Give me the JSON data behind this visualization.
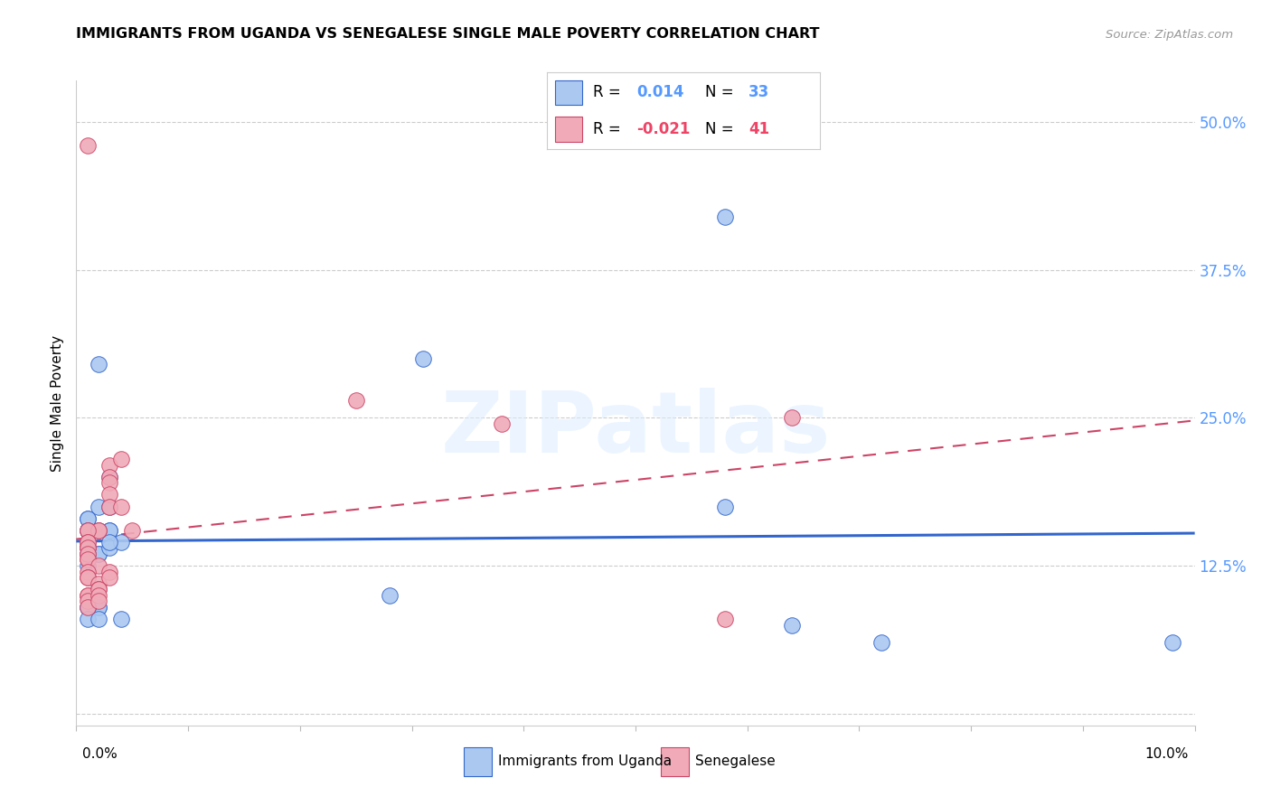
{
  "title": "IMMIGRANTS FROM UGANDA VS SENEGALESE SINGLE MALE POVERTY CORRELATION CHART",
  "source": "Source: ZipAtlas.com",
  "ylabel": "Single Male Poverty",
  "yticks": [
    0.0,
    0.125,
    0.25,
    0.375,
    0.5
  ],
  "ytick_labels": [
    "",
    "12.5%",
    "25.0%",
    "37.5%",
    "50.0%"
  ],
  "xlim": [
    0.0,
    0.1
  ],
  "ylim": [
    -0.01,
    0.535
  ],
  "legend_r_uganda": "0.014",
  "legend_n_uganda": "33",
  "legend_r_senegal": "-0.021",
  "legend_n_senegal": "41",
  "uganda_color": "#aac8f0",
  "senegal_color": "#f0aab8",
  "trendline_uganda_color": "#3366cc",
  "trendline_senegal_color": "#cc4466",
  "uganda_points_x": [
    0.003,
    0.002,
    0.003,
    0.001,
    0.001,
    0.002,
    0.003,
    0.001,
    0.002,
    0.003,
    0.001,
    0.001,
    0.001,
    0.002,
    0.002,
    0.001,
    0.001,
    0.001,
    0.002,
    0.003,
    0.004,
    0.003,
    0.001,
    0.002,
    0.004,
    0.031,
    0.028,
    0.058,
    0.058,
    0.002,
    0.064,
    0.072,
    0.098
  ],
  "uganda_points_y": [
    0.155,
    0.135,
    0.2,
    0.155,
    0.165,
    0.175,
    0.175,
    0.165,
    0.155,
    0.155,
    0.155,
    0.14,
    0.135,
    0.09,
    0.09,
    0.09,
    0.09,
    0.125,
    0.135,
    0.14,
    0.145,
    0.145,
    0.08,
    0.08,
    0.08,
    0.3,
    0.1,
    0.42,
    0.175,
    0.295,
    0.075,
    0.06,
    0.06
  ],
  "senegal_points_x": [
    0.001,
    0.001,
    0.001,
    0.001,
    0.001,
    0.002,
    0.002,
    0.001,
    0.001,
    0.001,
    0.001,
    0.001,
    0.001,
    0.002,
    0.001,
    0.001,
    0.001,
    0.002,
    0.002,
    0.001,
    0.001,
    0.001,
    0.001,
    0.003,
    0.003,
    0.003,
    0.003,
    0.003,
    0.004,
    0.004,
    0.005,
    0.003,
    0.003,
    0.002,
    0.002,
    0.002,
    0.025,
    0.038,
    0.058,
    0.064,
    0.001
  ],
  "senegal_points_y": [
    0.155,
    0.14,
    0.14,
    0.135,
    0.13,
    0.155,
    0.155,
    0.155,
    0.145,
    0.145,
    0.14,
    0.135,
    0.13,
    0.125,
    0.12,
    0.115,
    0.115,
    0.11,
    0.105,
    0.1,
    0.1,
    0.095,
    0.09,
    0.21,
    0.2,
    0.195,
    0.185,
    0.175,
    0.215,
    0.175,
    0.155,
    0.12,
    0.115,
    0.105,
    0.1,
    0.095,
    0.265,
    0.245,
    0.08,
    0.25,
    0.48
  ],
  "background_color": "#ffffff",
  "grid_color": "#cccccc",
  "watermark_text": "ZIPatlas",
  "bottom_legend_uganda": "Immigrants from Uganda",
  "bottom_legend_senegal": "Senegalese"
}
